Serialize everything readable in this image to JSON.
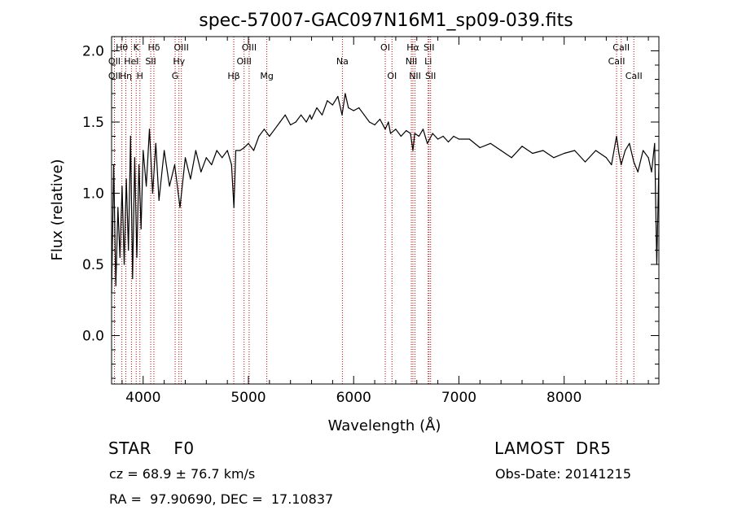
{
  "chart_data": {
    "type": "line",
    "title": "spec-57007-GAC097N16M1_sp09-039.fits",
    "xlabel": "Wavelength (Å)",
    "ylabel": "Flux (relative)",
    "xlim": [
      3700,
      8900
    ],
    "ylim": [
      -0.34,
      2.1
    ],
    "xticks": [
      4000,
      5000,
      6000,
      7000,
      8000
    ],
    "xtick_labels": [
      "4000",
      "5000",
      "6000",
      "7000",
      "8000"
    ],
    "yticks": [
      0.0,
      0.5,
      1.0,
      1.5,
      2.0
    ],
    "ytick_labels": [
      "0.0",
      "0.5",
      "1.0",
      "1.5",
      "2.0"
    ],
    "grid": false,
    "line_color": "#000000",
    "marker_color": "#cc0000",
    "series": [
      {
        "x": [
          3700,
          3720,
          3740,
          3760,
          3780,
          3800,
          3820,
          3840,
          3860,
          3880,
          3900,
          3920,
          3940,
          3960,
          3980,
          4000,
          4030,
          4060,
          4090,
          4120,
          4150,
          4200,
          4250,
          4300,
          4350,
          4400,
          4450,
          4500,
          4550,
          4600,
          4650,
          4700,
          4750,
          4800,
          4840,
          4862,
          4880,
          4920,
          4960,
          5000,
          5050,
          5100,
          5150,
          5200,
          5250,
          5300,
          5350,
          5400,
          5450,
          5500,
          5550,
          5585,
          5600,
          5650,
          5700,
          5750,
          5800,
          5850,
          5890,
          5920,
          5950,
          6000,
          6050,
          6100,
          6150,
          6200,
          6250,
          6300,
          6330,
          6350,
          6400,
          6450,
          6500,
          6540,
          6563,
          6580,
          6620,
          6660,
          6700,
          6750,
          6800,
          6850,
          6900,
          6950,
          7000,
          7100,
          7200,
          7300,
          7400,
          7500,
          7600,
          7700,
          7800,
          7900,
          8000,
          8100,
          8200,
          8300,
          8400,
          8450,
          8498,
          8520,
          8542,
          8580,
          8620,
          8662,
          8700,
          8750,
          8800,
          8830,
          8860,
          8880,
          8900
        ],
        "y": [
          0.3,
          1.2,
          0.35,
          0.9,
          0.55,
          1.05,
          0.5,
          1.1,
          0.6,
          1.4,
          0.4,
          1.25,
          0.55,
          1.2,
          0.75,
          1.3,
          1.05,
          1.45,
          1.0,
          1.35,
          0.95,
          1.3,
          1.05,
          1.2,
          0.9,
          1.25,
          1.1,
          1.3,
          1.15,
          1.25,
          1.2,
          1.3,
          1.25,
          1.3,
          1.2,
          0.9,
          1.3,
          1.3,
          1.32,
          1.35,
          1.3,
          1.4,
          1.45,
          1.4,
          1.45,
          1.5,
          1.55,
          1.48,
          1.5,
          1.55,
          1.5,
          1.55,
          1.52,
          1.6,
          1.55,
          1.65,
          1.62,
          1.68,
          1.55,
          1.7,
          1.6,
          1.58,
          1.6,
          1.55,
          1.5,
          1.48,
          1.52,
          1.45,
          1.5,
          1.42,
          1.45,
          1.4,
          1.44,
          1.42,
          1.3,
          1.42,
          1.4,
          1.45,
          1.35,
          1.42,
          1.38,
          1.4,
          1.36,
          1.4,
          1.38,
          1.38,
          1.32,
          1.35,
          1.3,
          1.25,
          1.33,
          1.28,
          1.3,
          1.25,
          1.28,
          1.3,
          1.22,
          1.3,
          1.25,
          1.2,
          1.4,
          1.28,
          1.2,
          1.3,
          1.35,
          1.22,
          1.15,
          1.3,
          1.25,
          1.15,
          1.35,
          0.5,
          1.2
        ]
      }
    ],
    "annotation_color": "#cc0000",
    "line_markers": [
      {
        "label": "Hθ",
        "wavelength": 3798,
        "row": 0
      },
      {
        "label": "OII",
        "wavelength": 3727,
        "row": 1
      },
      {
        "label": "OII",
        "wavelength": 3727,
        "row": 2
      },
      {
        "label": "Hη",
        "wavelength": 3835,
        "row": 2
      },
      {
        "label": "HeI",
        "wavelength": 3889,
        "row": 1
      },
      {
        "label": "K",
        "wavelength": 3934,
        "row": 0
      },
      {
        "label": "H",
        "wavelength": 3969,
        "row": 2
      },
      {
        "label": "Hδ",
        "wavelength": 4102,
        "row": 0
      },
      {
        "label": "SII",
        "wavelength": 4072,
        "row": 1
      },
      {
        "label": "OIII",
        "wavelength": 4363,
        "row": 0
      },
      {
        "label": "Hγ",
        "wavelength": 4340,
        "row": 1
      },
      {
        "label": "G",
        "wavelength": 4304,
        "row": 2
      },
      {
        "label": "Hβ",
        "wavelength": 4861,
        "row": 2
      },
      {
        "label": "OIII",
        "wavelength": 5007,
        "row": 0
      },
      {
        "label": "OIII",
        "wavelength": 4959,
        "row": 1
      },
      {
        "label": "Mg",
        "wavelength": 5175,
        "row": 2
      },
      {
        "label": "Na",
        "wavelength": 5893,
        "row": 1
      },
      {
        "label": "OI",
        "wavelength": 6300,
        "row": 0
      },
      {
        "label": "OI",
        "wavelength": 6364,
        "row": 2
      },
      {
        "label": "Hα",
        "wavelength": 6563,
        "row": 0
      },
      {
        "label": "NII",
        "wavelength": 6548,
        "row": 1
      },
      {
        "label": "NII",
        "wavelength": 6583,
        "row": 2
      },
      {
        "label": "SII",
        "wavelength": 6716,
        "row": 0
      },
      {
        "label": "Li",
        "wavelength": 6708,
        "row": 1
      },
      {
        "label": "SII",
        "wavelength": 6731,
        "row": 2
      },
      {
        "label": "CaII",
        "wavelength": 8542,
        "row": 0
      },
      {
        "label": "CaII",
        "wavelength": 8498,
        "row": 1
      },
      {
        "label": "CaII",
        "wavelength": 8662,
        "row": 2
      }
    ]
  },
  "info": {
    "class_text": "STAR    F0",
    "survey": "LAMOST  DR5",
    "cz": "cz = 68.9 ± 76.7 km/s",
    "obs_date": "Obs-Date: 20141215",
    "radec": "RA =  97.90690, DEC =  17.10837"
  }
}
